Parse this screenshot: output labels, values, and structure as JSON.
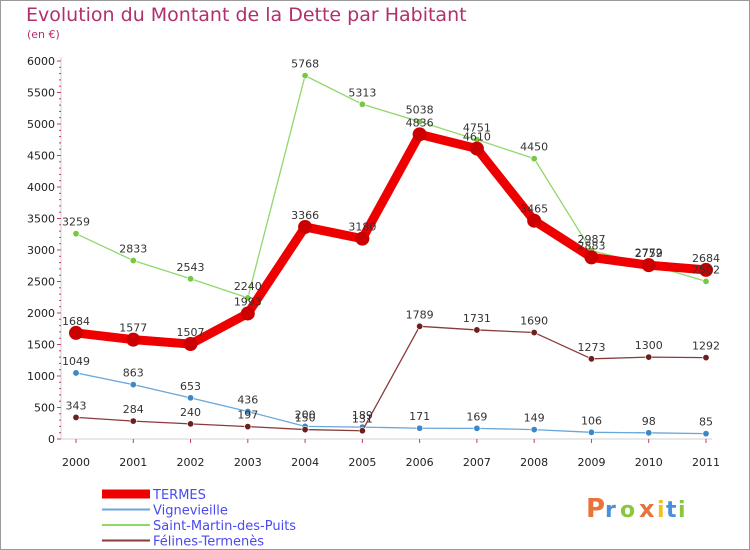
{
  "chart_data": {
    "type": "line",
    "title": "Evolution du Montant de la Dette par Habitant",
    "subtitle": "(en €)",
    "categories": [
      "2000",
      "2001",
      "2002",
      "2003",
      "2004",
      "2005",
      "2006",
      "2007",
      "2008",
      "2009",
      "2010",
      "2011"
    ],
    "ylim": [
      0,
      6000
    ],
    "yticks": [
      0,
      500,
      1000,
      1500,
      2000,
      2500,
      3000,
      3500,
      4000,
      4500,
      5000,
      5500,
      6000
    ],
    "grid": false,
    "legend_position": "bottom-left",
    "series": [
      {
        "name": "TERMES",
        "color": "#ee0000",
        "marker": "#cc0000",
        "width": 9,
        "values": [
          1684,
          1577,
          1507,
          1993,
          3366,
          3180,
          4836,
          4610,
          3465,
          2883,
          2759,
          2684
        ],
        "labels": [
          "1684",
          "1577",
          "1507",
          "1993",
          "3366",
          "3180",
          "4836",
          "4610",
          "3465",
          "2883",
          "2759",
          "2684"
        ]
      },
      {
        "name": "Vignevieille",
        "color": "#6aa6d8",
        "marker": "#3f86c6",
        "width": 1.3,
        "values": [
          1049,
          863,
          653,
          436,
          200,
          189,
          171,
          169,
          149,
          106,
          98,
          85
        ],
        "labels": [
          "1049",
          "863",
          "653",
          "436",
          "200",
          "189",
          "171",
          "169",
          "149",
          "106",
          "98",
          "85"
        ]
      },
      {
        "name": "Saint-Martin-des-Puits",
        "color": "#8fd86a",
        "marker": "#74c842",
        "width": 1.3,
        "values": [
          3259,
          2833,
          2543,
          2240,
          5768,
          5313,
          5038,
          4751,
          4450,
          2987,
          2772,
          2502
        ],
        "labels": [
          "3259",
          "2833",
          "2543",
          "2240",
          "5768",
          "5313",
          "5038",
          "4751",
          "4450",
          "2987",
          "2772",
          "2502"
        ]
      },
      {
        "name": "Félines-Termenès",
        "color": "#8a3a3a",
        "marker": "#6b1f1f",
        "width": 1.3,
        "values": [
          343,
          284,
          240,
          197,
          150,
          131,
          1789,
          1731,
          1690,
          1273,
          1300,
          1292
        ],
        "labels": [
          "343",
          "284",
          "240",
          "197",
          "150",
          "131",
          "1789",
          "1731",
          "1690",
          "1273",
          "1300",
          "1292"
        ]
      }
    ]
  },
  "logo": {
    "text": "Proxiti"
  }
}
